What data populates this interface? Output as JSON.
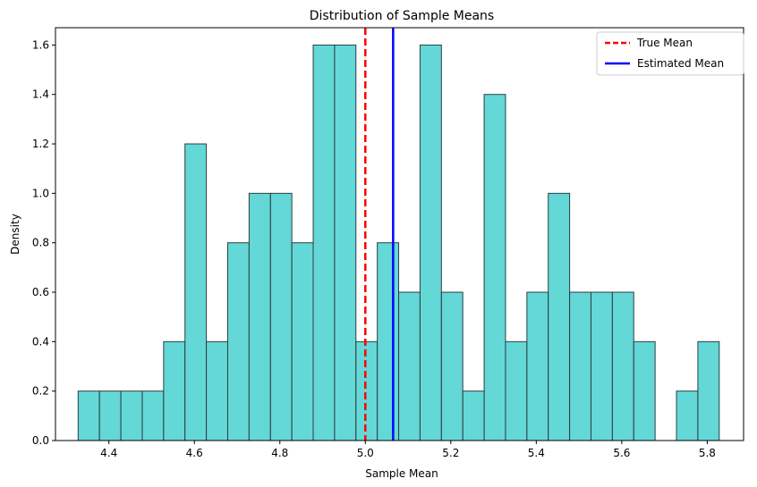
{
  "chart_data": {
    "type": "bar",
    "title": "Distribution of Sample Means",
    "xlabel": "Sample Mean",
    "ylabel": "Density",
    "xlim": [
      4.275,
      5.885
    ],
    "ylim": [
      0,
      1.67
    ],
    "xticks": [
      4.4,
      4.6,
      4.8,
      5.0,
      5.2,
      5.4,
      5.6,
      5.8
    ],
    "yticks": [
      0.0,
      0.2,
      0.4,
      0.6,
      0.8,
      1.0,
      1.2,
      1.4,
      1.6
    ],
    "bin_start": 4.328,
    "bin_width": 0.05,
    "values": [
      0.2,
      0.2,
      0.2,
      0.2,
      0.4,
      1.2,
      0.4,
      0.8,
      1.0,
      1.0,
      0.8,
      1.6,
      1.6,
      0.4,
      0.8,
      0.6,
      1.6,
      0.6,
      0.2,
      1.4,
      0.4,
      0.6,
      1.0,
      0.6,
      0.6,
      0.6,
      0.4,
      0.0,
      0.2,
      0.4
    ],
    "bar_color": "#4fd1d1",
    "bar_edge_color": "#2b4040",
    "vlines": [
      {
        "name": "True Mean",
        "x": 5.0,
        "color": "#ff0000",
        "style": "dashed"
      },
      {
        "name": "Estimated Mean",
        "x": 5.065,
        "color": "#0000ff",
        "style": "solid"
      }
    ],
    "legend": {
      "placement": "top-right",
      "entries": [
        "True Mean",
        "Estimated Mean"
      ]
    },
    "grid": false
  }
}
